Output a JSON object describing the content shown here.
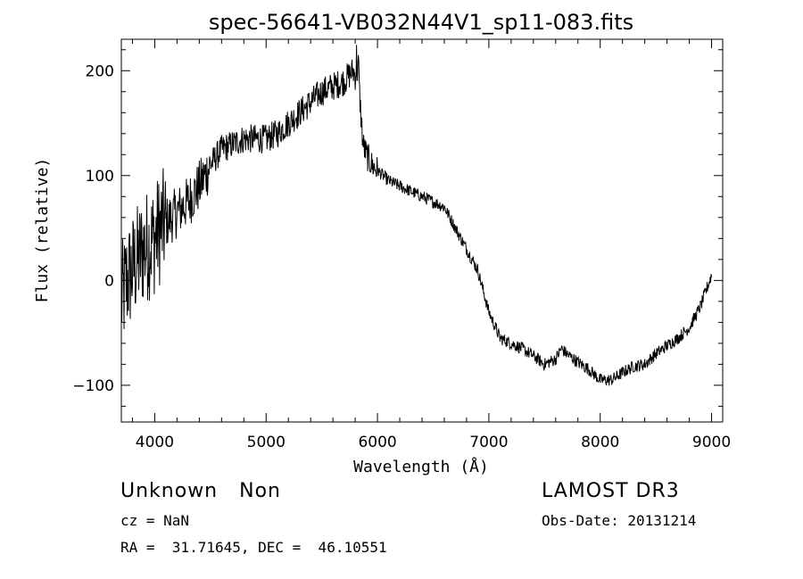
{
  "chart_data": {
    "type": "line",
    "title": "spec-56641-VB032N44V1_sp11-083.fits",
    "xlabel": "Wavelength (Å)",
    "ylabel": "Flux (relative)",
    "xlim": [
      3700,
      9100
    ],
    "ylim": [
      -135,
      230
    ],
    "xticks": [
      4000,
      5000,
      6000,
      7000,
      8000,
      9000
    ],
    "yticks": [
      -100,
      0,
      100,
      200
    ],
    "xtick_labels": [
      "4000",
      "5000",
      "6000",
      "7000",
      "8000",
      "9000"
    ],
    "ytick_labels": [
      "−100",
      "0",
      "100",
      "200"
    ],
    "series": [
      {
        "name": "flux",
        "x": [
          3700,
          3750,
          3800,
          3850,
          3900,
          3950,
          4000,
          4050,
          4100,
          4150,
          4200,
          4300,
          4400,
          4500,
          4600,
          4700,
          4800,
          4900,
          5000,
          5100,
          5200,
          5300,
          5400,
          5500,
          5600,
          5700,
          5780,
          5800,
          5820,
          5850,
          5870,
          5900,
          5950,
          6000,
          6100,
          6200,
          6300,
          6400,
          6500,
          6600,
          6650,
          6700,
          6800,
          6900,
          7000,
          7100,
          7200,
          7300,
          7400,
          7500,
          7600,
          7650,
          7700,
          7800,
          7900,
          8000,
          8100,
          8200,
          8300,
          8400,
          8500,
          8600,
          8700,
          8800,
          8850,
          8900,
          8950,
          9000
        ],
        "y": [
          -20,
          0,
          10,
          20,
          30,
          35,
          40,
          50,
          55,
          60,
          65,
          75,
          90,
          110,
          125,
          130,
          135,
          135,
          135,
          140,
          150,
          160,
          170,
          180,
          185,
          190,
          200,
          195,
          210,
          160,
          130,
          120,
          110,
          105,
          95,
          90,
          85,
          80,
          75,
          70,
          60,
          50,
          30,
          10,
          -30,
          -55,
          -60,
          -65,
          -72,
          -80,
          -75,
          -65,
          -70,
          -78,
          -85,
          -95,
          -95,
          -88,
          -82,
          -80,
          -70,
          -62,
          -55,
          -45,
          -35,
          -25,
          -10,
          5
        ]
      }
    ],
    "grid": false
  },
  "info": {
    "class_line": "Unknown   Non",
    "survey": "LAMOST DR3",
    "cz": "cz = NaN",
    "obs_date": "Obs-Date: 20131214",
    "coords": "RA =  31.71645, DEC =  46.10551"
  }
}
